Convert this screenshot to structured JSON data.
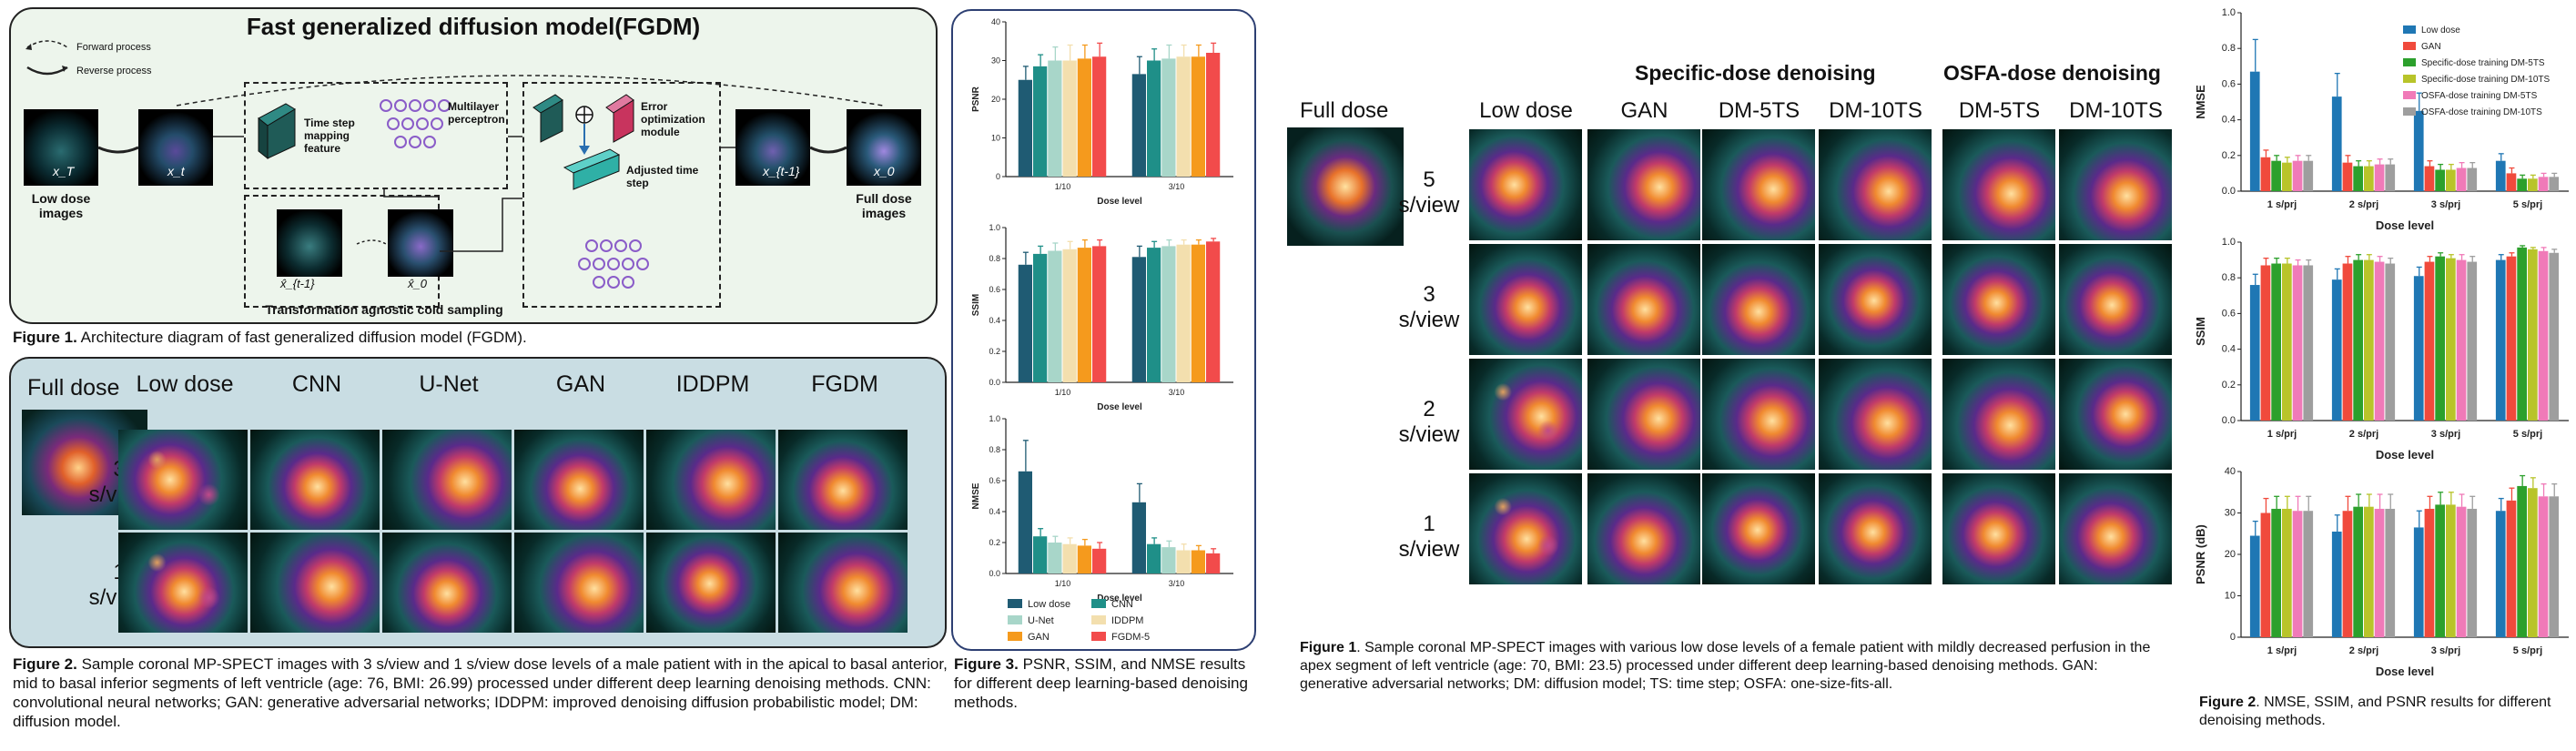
{
  "arch": {
    "title": "Fast generalized diffusion model(FGDM)",
    "legend_forward": "Forward process",
    "legend_reverse": "Reverse process",
    "label_low_dose": "Low dose images",
    "label_full_dose": "Full dose images",
    "lbl_xT": "x_T",
    "lbl_xt": "x_t",
    "lbl_xt1": "x_{t-1}",
    "lbl_x0": "x_0",
    "lbl_xhat_t1": "x̂_{t-1}",
    "lbl_xhat_0": "x̂_0",
    "timestep_module": "Time step mapping feature",
    "mlp_label": "Multilayer perceptron",
    "error_module": "Error optimization module",
    "adjusted_label": "Adjusted time step",
    "cold_sampling": "Transformation agnostic cold sampling"
  },
  "fig1_caption": {
    "bold": "Figure 1.",
    "text": " Architecture diagram of fast generalized diffusion model (FGDM)."
  },
  "fig2": {
    "full_dose": "Full dose",
    "columns": [
      "Low dose",
      "CNN",
      "U-Net",
      "GAN",
      "IDDPM",
      "FGDM"
    ],
    "rows": [
      "3 s/view",
      "1 s/view"
    ]
  },
  "fig2_caption": {
    "bold": "Figure 2.",
    "text": " Sample coronal MP-SPECT images with 3 s/view and 1 s/view dose levels of a male patient with in the apical to basal anterior, mid to basal inferior segments of left ventricle (age: 76, BMI: 26.99) processed under different deep learning denoising methods. CNN: convolutional neural networks; GAN: generative adversarial networks; IDDPM: improved denoising diffusion probabilistic model; DM: diffusion model."
  },
  "fig3": {
    "colors": [
      "#1f5b73",
      "#1f8f88",
      "#a8d6c9",
      "#f3dfae",
      "#f59a1d",
      "#f24b4b"
    ],
    "legend": [
      "Low dose",
      "CNN",
      "U-Net",
      "IDDPM",
      "GAN",
      "FGDM-5"
    ],
    "xlabel": "Dose level",
    "categories": [
      "1/10",
      "3/10"
    ]
  },
  "fig3_caption": {
    "bold": "Figure 3.",
    "text": " PSNR, SSIM, and NMSE results for different deep learning-based denoising methods."
  },
  "chart_data": [
    {
      "type": "bar",
      "title": "",
      "ylabel": "PSNR",
      "xlabel": "Dose level",
      "categories": [
        "1/10",
        "3/10"
      ],
      "ylim": [
        0,
        40
      ],
      "yticks": [
        0,
        10,
        20,
        30,
        40
      ],
      "series": [
        {
          "name": "Low dose",
          "values": [
            25,
            26.5
          ]
        },
        {
          "name": "CNN",
          "values": [
            28.5,
            30
          ]
        },
        {
          "name": "U-Net",
          "values": [
            30,
            30.5
          ]
        },
        {
          "name": "IDDPM",
          "values": [
            30,
            31
          ]
        },
        {
          "name": "GAN",
          "values": [
            30.5,
            31
          ]
        },
        {
          "name": "FGDM-5",
          "values": [
            31,
            32
          ]
        }
      ],
      "errors": [
        [
          3.5,
          4.5
        ],
        [
          3,
          3
        ],
        [
          3.5,
          3.5
        ],
        [
          4,
          3
        ],
        [
          3.5,
          3
        ],
        [
          3.5,
          2.5
        ]
      ]
    },
    {
      "type": "bar",
      "title": "",
      "ylabel": "SSIM",
      "xlabel": "Dose level",
      "categories": [
        "1/10",
        "3/10"
      ],
      "ylim": [
        0,
        1
      ],
      "yticks": [
        0,
        0.2,
        0.4,
        0.6,
        0.8,
        1.0
      ],
      "series": [
        {
          "name": "Low dose",
          "values": [
            0.76,
            0.81
          ]
        },
        {
          "name": "CNN",
          "values": [
            0.83,
            0.87
          ]
        },
        {
          "name": "U-Net",
          "values": [
            0.85,
            0.88
          ]
        },
        {
          "name": "IDDPM",
          "values": [
            0.86,
            0.89
          ]
        },
        {
          "name": "GAN",
          "values": [
            0.87,
            0.89
          ]
        },
        {
          "name": "FGDM-5",
          "values": [
            0.88,
            0.91
          ]
        }
      ],
      "errors": [
        [
          0.08,
          0.07
        ],
        [
          0.05,
          0.04
        ],
        [
          0.05,
          0.04
        ],
        [
          0.05,
          0.03
        ],
        [
          0.05,
          0.03
        ],
        [
          0.04,
          0.02
        ]
      ]
    },
    {
      "type": "bar",
      "title": "",
      "ylabel": "NMSE",
      "xlabel": "Dose level",
      "categories": [
        "1/10",
        "3/10"
      ],
      "ylim": [
        0,
        1.0
      ],
      "yticks": [
        0,
        0.2,
        0.4,
        0.6,
        0.8,
        1.0
      ],
      "series": [
        {
          "name": "Low dose",
          "values": [
            0.66,
            0.46
          ]
        },
        {
          "name": "CNN",
          "values": [
            0.24,
            0.19
          ]
        },
        {
          "name": "U-Net",
          "values": [
            0.2,
            0.17
          ]
        },
        {
          "name": "IDDPM",
          "values": [
            0.19,
            0.15
          ]
        },
        {
          "name": "GAN",
          "values": [
            0.18,
            0.15
          ]
        },
        {
          "name": "FGDM-5",
          "values": [
            0.16,
            0.13
          ]
        }
      ],
      "errors": [
        [
          0.2,
          0.12
        ],
        [
          0.05,
          0.04
        ],
        [
          0.04,
          0.04
        ],
        [
          0.04,
          0.04
        ],
        [
          0.04,
          0.03
        ],
        [
          0.04,
          0.03
        ]
      ]
    },
    {
      "type": "bar",
      "title": "",
      "ylabel": "NMSE",
      "xlabel": "Dose level",
      "categories": [
        "1 s/prj",
        "2 s/prj",
        "3 s/prj",
        "5 s/prj"
      ],
      "ylim": [
        0,
        1.0
      ],
      "yticks": [
        0,
        0.2,
        0.4,
        0.6,
        0.8,
        1.0
      ],
      "series": [
        {
          "name": "Low dose",
          "values": [
            0.67,
            0.53,
            0.45,
            0.17
          ]
        },
        {
          "name": "GAN",
          "values": [
            0.19,
            0.16,
            0.14,
            0.1
          ]
        },
        {
          "name": "Specific-dose training DM-5TS",
          "values": [
            0.17,
            0.14,
            0.12,
            0.07
          ]
        },
        {
          "name": "Specific-dose training DM-10TS",
          "values": [
            0.16,
            0.14,
            0.12,
            0.07
          ]
        },
        {
          "name": "OSFA-dose training DM-5TS",
          "values": [
            0.17,
            0.15,
            0.13,
            0.08
          ]
        },
        {
          "name": "OSFA-dose training DM-10TS",
          "values": [
            0.17,
            0.15,
            0.13,
            0.08
          ]
        }
      ],
      "errors": [
        [
          0.18,
          0.13,
          0.1,
          0.04
        ],
        [
          0.04,
          0.04,
          0.03,
          0.03
        ],
        [
          0.03,
          0.03,
          0.03,
          0.02
        ],
        [
          0.03,
          0.03,
          0.03,
          0.02
        ],
        [
          0.03,
          0.03,
          0.03,
          0.02
        ],
        [
          0.03,
          0.03,
          0.03,
          0.02
        ]
      ]
    },
    {
      "type": "bar",
      "title": "",
      "ylabel": "SSIM",
      "xlabel": "Dose level",
      "categories": [
        "1 s/prj",
        "2 s/prj",
        "3 s/prj",
        "5 s/prj"
      ],
      "ylim": [
        0,
        1.0
      ],
      "yticks": [
        0,
        0.2,
        0.4,
        0.6,
        0.8,
        1.0
      ],
      "series": [
        {
          "name": "Low dose",
          "values": [
            0.76,
            0.79,
            0.81,
            0.9
          ]
        },
        {
          "name": "GAN",
          "values": [
            0.87,
            0.88,
            0.89,
            0.92
          ]
        },
        {
          "name": "Specific-dose training DM-5TS",
          "values": [
            0.88,
            0.9,
            0.92,
            0.97
          ]
        },
        {
          "name": "Specific-dose training DM-10TS",
          "values": [
            0.88,
            0.9,
            0.91,
            0.96
          ]
        },
        {
          "name": "OSFA-dose training DM-5TS",
          "values": [
            0.87,
            0.89,
            0.9,
            0.95
          ]
        },
        {
          "name": "OSFA-dose training DM-10TS",
          "values": [
            0.87,
            0.88,
            0.89,
            0.94
          ]
        }
      ],
      "errors": [
        [
          0.06,
          0.06,
          0.05,
          0.03
        ],
        [
          0.04,
          0.04,
          0.03,
          0.02
        ],
        [
          0.03,
          0.03,
          0.02,
          0.01
        ],
        [
          0.03,
          0.03,
          0.02,
          0.01
        ],
        [
          0.03,
          0.03,
          0.03,
          0.02
        ],
        [
          0.03,
          0.03,
          0.03,
          0.02
        ]
      ]
    },
    {
      "type": "bar",
      "title": "",
      "ylabel": "PSNR (dB)",
      "xlabel": "Dose level",
      "categories": [
        "1 s/prj",
        "2 s/prj",
        "3 s/prj",
        "5 s/prj"
      ],
      "ylim": [
        0,
        40
      ],
      "yticks": [
        0,
        10,
        20,
        30,
        40
      ],
      "series": [
        {
          "name": "Low dose",
          "values": [
            24.5,
            25.5,
            26.5,
            30.5
          ]
        },
        {
          "name": "GAN",
          "values": [
            30,
            30.5,
            31,
            33
          ]
        },
        {
          "name": "Specific-dose training DM-5TS",
          "values": [
            31,
            31.5,
            32,
            36.5
          ]
        },
        {
          "name": "Specific-dose training DM-10TS",
          "values": [
            31,
            31.5,
            32,
            36
          ]
        },
        {
          "name": "OSFA-dose training DM-5TS",
          "values": [
            30.5,
            31,
            31.5,
            34
          ]
        },
        {
          "name": "OSFA-dose training DM-10TS",
          "values": [
            30.5,
            31,
            31,
            34
          ]
        }
      ],
      "errors": [
        [
          3.5,
          4,
          4,
          3
        ],
        [
          3.5,
          3.5,
          3,
          3
        ],
        [
          3,
          3,
          3,
          2.5
        ],
        [
          3,
          3,
          3,
          2.5
        ],
        [
          3.5,
          3.5,
          3,
          3
        ],
        [
          3.5,
          3.5,
          3,
          3
        ]
      ]
    }
  ],
  "fig1b": {
    "full_dose": "Full dose",
    "header_specific": "Specific-dose denoising",
    "header_osfa": "OSFA-dose denoising",
    "columns": [
      "Low dose",
      "GAN",
      "DM-5TS",
      "DM-10TS",
      "DM-5TS",
      "DM-10TS"
    ],
    "rows": [
      "5 s/view",
      "3 s/view",
      "2 s/view",
      "1 s/view"
    ]
  },
  "fig1b_caption": {
    "bold": "Figure 1",
    "text": ". Sample coronal MP-SPECT images with various low dose levels of a female patient with mildly decreased perfusion in the apex segment of left ventricle (age: 70, BMI: 23.5) processed under different deep learning-based denoising methods. GAN: generative adversarial networks; DM: diffusion model; TS: time step; OSFA: one-size-fits-all."
  },
  "fig2b": {
    "colors": [
      "#1f77b4",
      "#f04a3c",
      "#2ca02c",
      "#b8c42a",
      "#f07ab8",
      "#9e9e9e"
    ],
    "legend": [
      "Low dose",
      "GAN",
      "Specific-dose training DM-5TS",
      "Specific-dose training DM-10TS",
      "OSFA-dose training DM-5TS",
      "OSFA-dose training DM-10TS"
    ],
    "xlabel": "Dose level",
    "categories": [
      "1 s/prj",
      "2 s/prj",
      "3 s/prj",
      "5 s/prj"
    ]
  },
  "fig2b_caption": {
    "bold": "Figure 2",
    "text": ". NMSE, SSIM, and PSNR results for different denoising methods."
  }
}
